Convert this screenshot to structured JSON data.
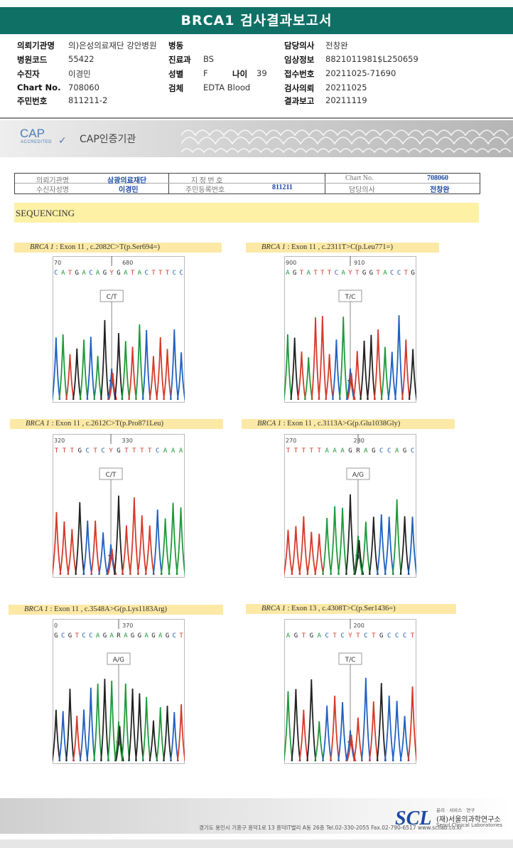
{
  "title": "BRCA1 검사결과보고서",
  "info": {
    "inst_label": "의뢰기관명",
    "inst_value": "의)은성의료재단 강안병원",
    "ward_label": "병동",
    "doctor_label": "담당의사",
    "doctor_value": "전창완",
    "hospcode_label": "병원코드",
    "hospcode_value": "55422",
    "dept_label": "진료과",
    "dept_value": "BS",
    "clinical_label": "임상정보",
    "clinical_value": "8821011981$L250659",
    "patient_label": "수진자",
    "patient_value": "이경민",
    "sex_label": "성별",
    "sex_value": "F",
    "age_label": "나이",
    "age_value": "39",
    "receipt_label": "접수번호",
    "receipt_value": "20211025-71690",
    "chart_label": "Chart No.",
    "chart_value": "708060",
    "specimen_label": "검체",
    "specimen_value": "EDTA Blood",
    "request_label": "검사의뢰",
    "request_value": "20211025",
    "resident_label": "주민번호",
    "resident_value": "811211-2",
    "report_label": "결과보고",
    "report_value": "20211119"
  },
  "cap": {
    "logo": "CAP",
    "sub": "ACCREDITED",
    "text": "CAP인증기관"
  },
  "header_table": {
    "inst_k": "의뢰기관명",
    "inst_v": "삼광의료재단",
    "designation_k": "지 정 번 호",
    "designation_v": "",
    "chart_k": "Chart No.",
    "chart_v": "708060",
    "name_k": "수신자성명",
    "name_v": "이경민",
    "rrn_k": "주민등록번호",
    "rrn_v": "811211",
    "doctor_k": "담당의사",
    "doctor_v": "전창완"
  },
  "section": "SEQUENCING",
  "panels": [
    {
      "gene": "BRCA 1",
      "desc": " : Exon 11 , c.2082C>T(p.Ser694=)",
      "seq": "CATGACAGYGATACTTTCC",
      "pos1": "70",
      "pos2": "680",
      "call": "C/T"
    },
    {
      "gene": "BRCA 1",
      "desc": " : Exon 11 , c.2311T>C(p.Leu771=)",
      "seq": "AGTATTTCAYTGGTACCTG",
      "pos1": "900",
      "pos2": "910",
      "call": "T/C"
    },
    {
      "gene": "BRCA 1",
      "desc": " : Exon 11 , c.2612C>T(p.Pro871Leu)",
      "seq": "TTTGCTCYGTTTTCAAA",
      "pos1": "320",
      "pos2": "330",
      "call": "C/T"
    },
    {
      "gene": "BRCA 1",
      "desc": " : Exon 11 , c.3113A>G(p.Glu1038Gly)",
      "seq": "TTTTTAAAGRAGCCAGC",
      "pos1": "270",
      "pos2": "280",
      "call": "A/G"
    },
    {
      "gene": "BRCA 1",
      "desc": " : Exon 11 , c.3548A>G(p.Lys1183Arg)",
      "seq": "GCGTCCAGARAGGAGAGCT",
      "pos1": "0",
      "pos2": "370",
      "call": "A/G"
    },
    {
      "gene": "BRCA 1",
      "desc": " : Exon 13 , c.4308T>C(p.Ser1436=)",
      "seq": "AGTGACTCYTCTGCCCT",
      "pos1": "",
      "pos2": "200",
      "call": "T/C"
    }
  ],
  "footer": {
    "address": "경기도 용인시 기흥구 흥덕1로 13 흥덕IT밸리 A동 26층   Tel.02-330-2055   Fax.02-790-6517   www.scllab.co.kr",
    "logo": "SCL",
    "tagline": "윤리 · 서비스 · 연구",
    "name_ko": "(재)서울의과학연구소",
    "name_en": "Seoul Clinical Laboratories"
  },
  "colors": {
    "title_bg": "#0f7066",
    "A": "#1f9a3a",
    "C": "#2060c0",
    "G": "#222222",
    "T": "#d63a2a",
    "label_bg": "#fce9a6"
  }
}
